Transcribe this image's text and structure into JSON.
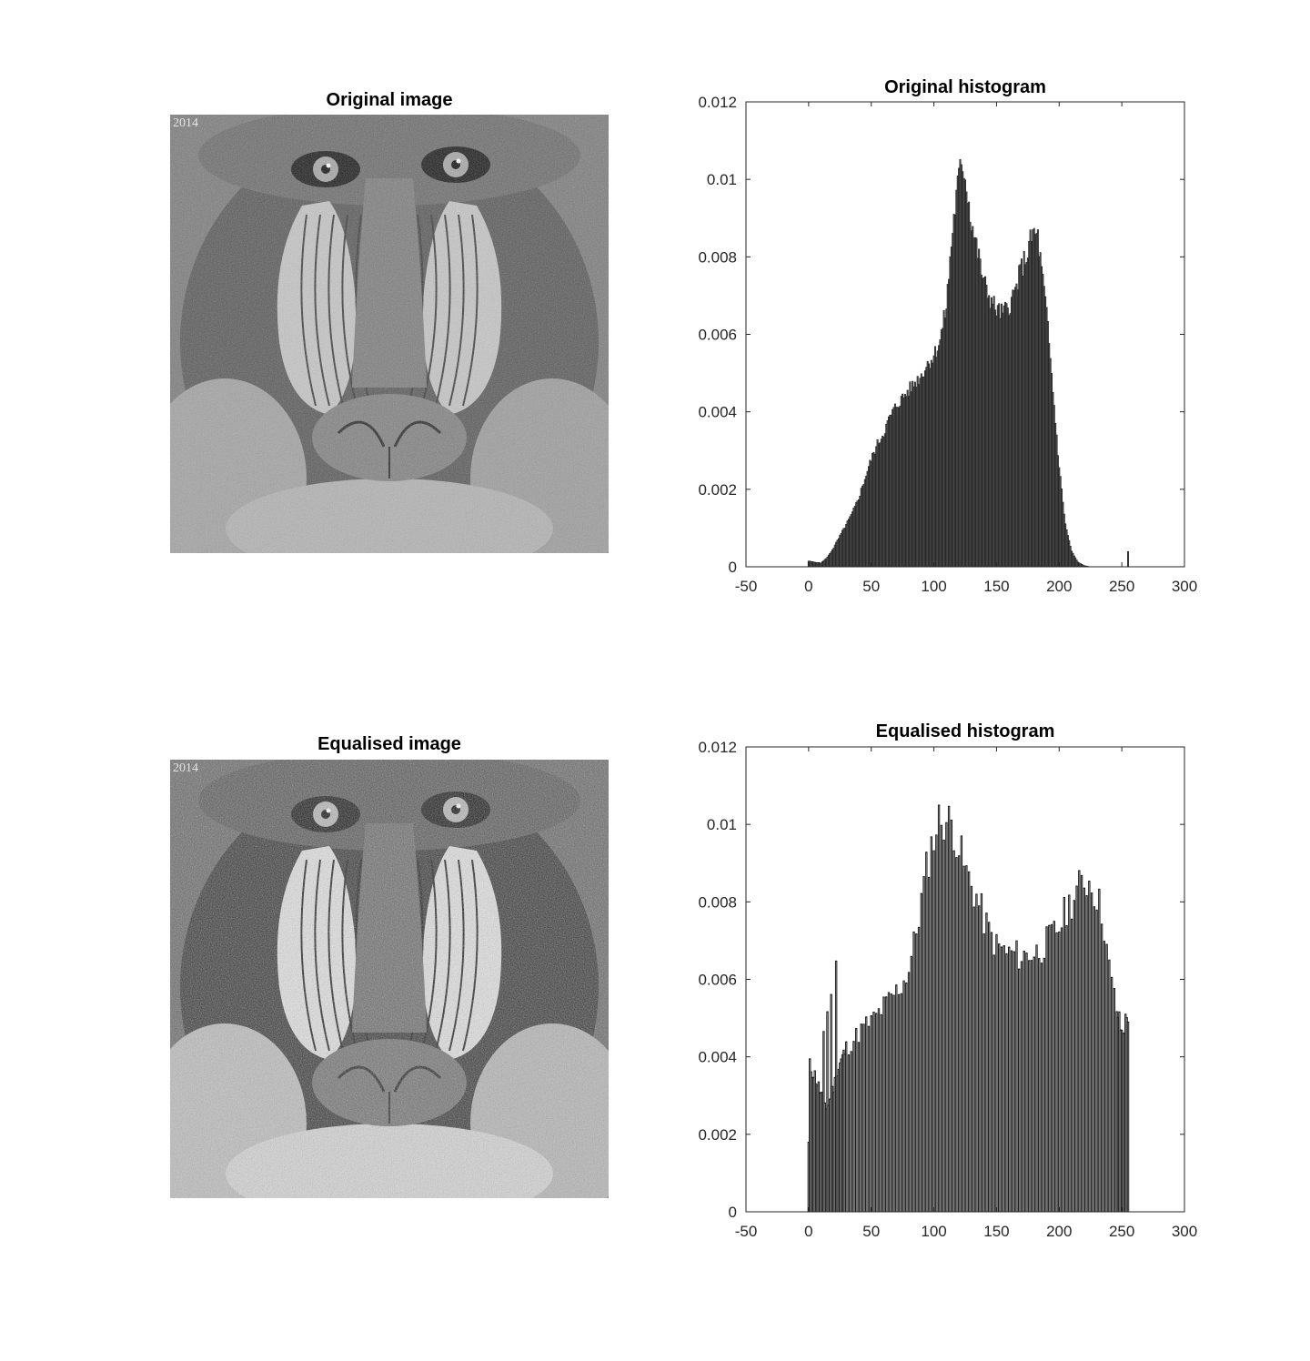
{
  "panels": {
    "orig_image": {
      "title": "Original image",
      "watermark": "2014",
      "style": "normal"
    },
    "eq_image": {
      "title": "Equalised image",
      "watermark": "2014",
      "style": "contrast"
    }
  },
  "colors": {
    "bar_fill": "#555555",
    "bar_stroke": "#1a1a1a",
    "axis": "#262626"
  },
  "chart_data": [
    {
      "type": "bar",
      "title": "Original histogram",
      "xlabel": "",
      "ylabel": "",
      "xlim": [
        -50,
        300
      ],
      "ylim": [
        0,
        0.012
      ],
      "xticks": [
        -50,
        0,
        50,
        100,
        150,
        200,
        250,
        300
      ],
      "yticks": [
        0,
        0.002,
        0.004,
        0.006,
        0.008,
        0.01,
        0.012
      ],
      "ytick_labels": [
        "0",
        "0.002",
        "0.004",
        "0.006",
        "0.008",
        "0.01",
        "0.012"
      ],
      "grid": false,
      "envelope": [
        [
          0,
          0.00015
        ],
        [
          5,
          0.00012
        ],
        [
          10,
          0.0001
        ],
        [
          15,
          0.00025
        ],
        [
          20,
          0.0005
        ],
        [
          25,
          0.0008
        ],
        [
          30,
          0.0011
        ],
        [
          35,
          0.0014
        ],
        [
          40,
          0.0018
        ],
        [
          45,
          0.0023
        ],
        [
          50,
          0.0028
        ],
        [
          55,
          0.0032
        ],
        [
          60,
          0.0035
        ],
        [
          65,
          0.0039
        ],
        [
          70,
          0.0042
        ],
        [
          75,
          0.0044
        ],
        [
          80,
          0.0046
        ],
        [
          85,
          0.0048
        ],
        [
          90,
          0.005
        ],
        [
          95,
          0.0053
        ],
        [
          100,
          0.0055
        ],
        [
          105,
          0.0059
        ],
        [
          110,
          0.0068
        ],
        [
          115,
          0.0088
        ],
        [
          120,
          0.0102
        ],
        [
          123,
          0.0105
        ],
        [
          125,
          0.0102
        ],
        [
          130,
          0.009
        ],
        [
          135,
          0.0082
        ],
        [
          140,
          0.0074
        ],
        [
          145,
          0.007
        ],
        [
          150,
          0.0067
        ],
        [
          155,
          0.0066
        ],
        [
          160,
          0.0068
        ],
        [
          165,
          0.0072
        ],
        [
          170,
          0.0078
        ],
        [
          175,
          0.0082
        ],
        [
          178,
          0.0086
        ],
        [
          180,
          0.0087
        ],
        [
          183,
          0.0086
        ],
        [
          185,
          0.008
        ],
        [
          190,
          0.0066
        ],
        [
          195,
          0.0046
        ],
        [
          200,
          0.0026
        ],
        [
          205,
          0.0011
        ],
        [
          210,
          0.0004
        ],
        [
          215,
          0.00012
        ],
        [
          220,
          3e-05
        ],
        [
          225,
          0
        ],
        [
          255,
          0
        ]
      ],
      "spikes": [
        [
          255,
          0.0004
        ]
      ]
    },
    {
      "type": "bar",
      "title": "Equalised histogram",
      "xlabel": "",
      "ylabel": "",
      "xlim": [
        -50,
        300
      ],
      "ylim": [
        0,
        0.012
      ],
      "xticks": [
        -50,
        0,
        50,
        100,
        150,
        200,
        250,
        300
      ],
      "yticks": [
        0,
        0.002,
        0.004,
        0.006,
        0.008,
        0.01,
        0.012
      ],
      "ytick_labels": [
        "0",
        "0.002",
        "0.004",
        "0.006",
        "0.008",
        "0.01",
        "0.012"
      ],
      "grid": false,
      "envelope": [
        [
          0,
          0.0039
        ],
        [
          5,
          0.0036
        ],
        [
          10,
          0.0031
        ],
        [
          15,
          0.0027
        ],
        [
          20,
          0.0033
        ],
        [
          25,
          0.0039
        ],
        [
          30,
          0.0043
        ],
        [
          35,
          0.0045
        ],
        [
          40,
          0.0047
        ],
        [
          45,
          0.0049
        ],
        [
          50,
          0.005
        ],
        [
          55,
          0.0052
        ],
        [
          60,
          0.0054
        ],
        [
          65,
          0.0056
        ],
        [
          70,
          0.0058
        ],
        [
          75,
          0.006
        ],
        [
          80,
          0.0064
        ],
        [
          85,
          0.0072
        ],
        [
          90,
          0.0082
        ],
        [
          95,
          0.0092
        ],
        [
          100,
          0.0099
        ],
        [
          105,
          0.0104
        ],
        [
          110,
          0.0103
        ],
        [
          115,
          0.0102
        ],
        [
          120,
          0.0096
        ],
        [
          125,
          0.009
        ],
        [
          130,
          0.0086
        ],
        [
          135,
          0.0082
        ],
        [
          140,
          0.0077
        ],
        [
          145,
          0.0073
        ],
        [
          150,
          0.007
        ],
        [
          155,
          0.0069
        ],
        [
          160,
          0.0068
        ],
        [
          165,
          0.0068
        ],
        [
          170,
          0.0067
        ],
        [
          175,
          0.0068
        ],
        [
          180,
          0.0068
        ],
        [
          185,
          0.0069
        ],
        [
          190,
          0.0071
        ],
        [
          195,
          0.0073
        ],
        [
          200,
          0.0075
        ],
        [
          205,
          0.0079
        ],
        [
          210,
          0.0082
        ],
        [
          215,
          0.0085
        ],
        [
          220,
          0.0087
        ],
        [
          225,
          0.0087
        ],
        [
          230,
          0.0083
        ],
        [
          235,
          0.0078
        ],
        [
          240,
          0.0064
        ],
        [
          245,
          0.0055
        ],
        [
          250,
          0.0047
        ],
        [
          255,
          0.0052
        ]
      ],
      "spikes": [
        [
          0,
          0.0018
        ],
        [
          12,
          0.0045
        ],
        [
          15,
          0.0053
        ],
        [
          18,
          0.0059
        ],
        [
          22,
          0.007
        ]
      ]
    }
  ]
}
